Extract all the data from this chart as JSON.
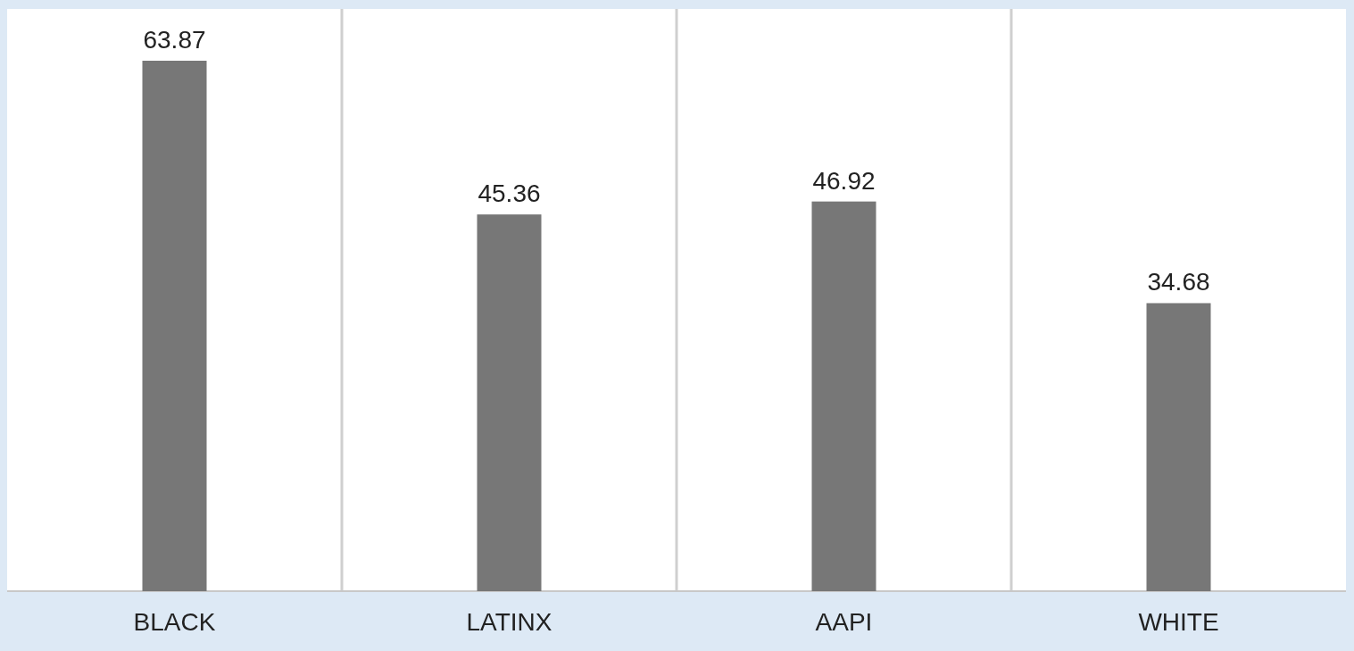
{
  "chart_data": {
    "type": "bar",
    "categories": [
      "BLACK",
      "LATINX",
      "AAPI",
      "WHITE"
    ],
    "values": [
      63.87,
      45.36,
      46.92,
      34.68
    ],
    "color": "#777777",
    "data_labels": true,
    "grid": "x"
  }
}
